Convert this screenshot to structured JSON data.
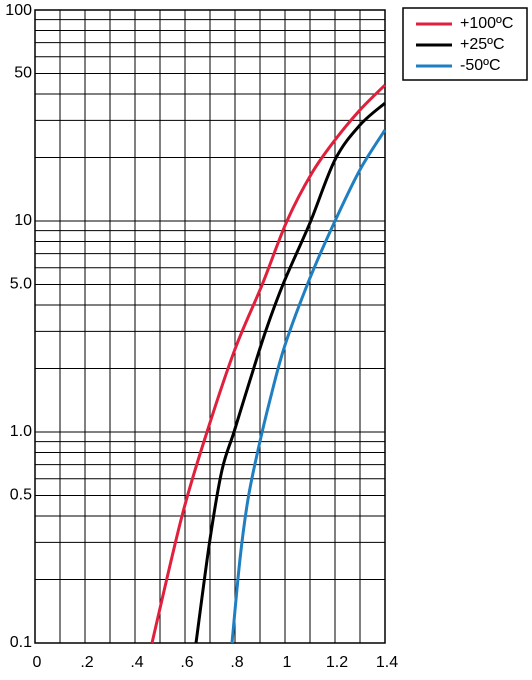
{
  "chart_data": {
    "type": "line",
    "x_scale": "linear",
    "y_scale": "log",
    "xlim": [
      0,
      1.4
    ],
    "xticks": [
      0,
      {
        "value": 0.2,
        "label": ".2"
      },
      {
        "value": 0.4,
        "label": ".4"
      },
      {
        "value": 0.6,
        "label": ".6"
      },
      {
        "value": 0.8,
        "label": ".8"
      },
      1,
      1.2,
      1.4
    ],
    "x_grid": [
      0.1,
      0.3,
      0.5,
      0.7,
      0.9,
      1.1,
      1.3
    ],
    "ylim": [
      0.1,
      100
    ],
    "yticks": [
      0.1,
      0.5,
      {
        "value": 1,
        "label": "1.0"
      },
      {
        "value": 5,
        "label": "5.0"
      },
      10,
      50,
      100
    ],
    "y_grid": [
      0.2,
      0.3,
      0.4,
      0.6,
      0.7,
      0.8,
      0.9,
      2,
      3,
      4,
      6,
      7,
      8,
      9,
      20,
      30,
      40,
      60,
      70,
      80,
      90
    ],
    "grid": true,
    "legend": "top-right",
    "series": [
      {
        "name": "+100ºC",
        "color": "#e0203c",
        "x": [
          0.468,
          0.588,
          0.688,
          0.8,
          0.908,
          1.008,
          1.108,
          1.2,
          1.3,
          1.4
        ],
        "values": [
          0.1,
          0.4,
          1.0,
          2.47,
          4.97,
          10,
          16.9,
          24.2,
          33.6,
          44.1
        ]
      },
      {
        "name": "+25ºC",
        "color": "#000000",
        "x": [
          0.644,
          0.7,
          0.748,
          0.796,
          0.86,
          0.924,
          0.996,
          1.1,
          1.2,
          1.3,
          1.4
        ],
        "values": [
          0.1,
          0.31,
          0.66,
          1.0,
          1.76,
          3.04,
          5.14,
          9.8,
          19.5,
          28.5,
          36.2
        ]
      },
      {
        "name": "-50ºC",
        "color": "#1f7fc1",
        "x": [
          0.788,
          0.82,
          0.852,
          0.892,
          0.94,
          1.0,
          1.1,
          1.2,
          1.3,
          1.4
        ],
        "values": [
          0.1,
          0.25,
          0.48,
          0.82,
          1.42,
          2.58,
          5.37,
          10,
          17.5,
          27
        ]
      }
    ]
  }
}
